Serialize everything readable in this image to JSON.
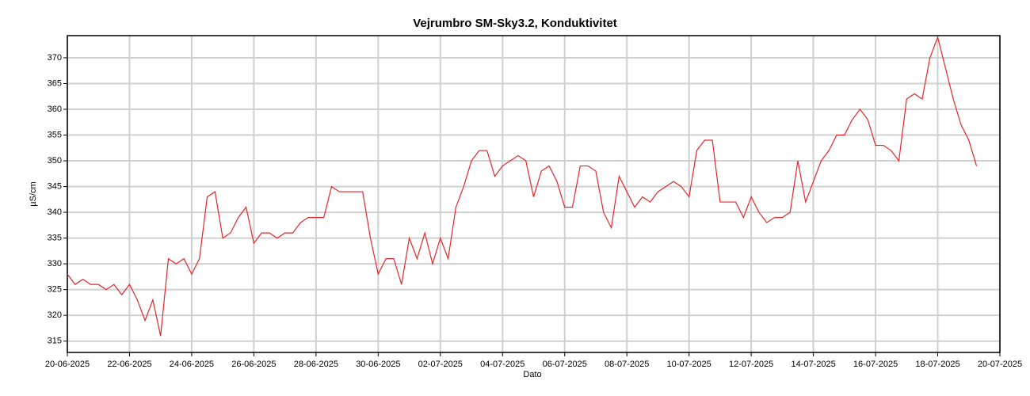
{
  "chart_data": {
    "type": "line",
    "title": "Vejrumbro SM-Sky3.2, Konduktivitet",
    "xlabel": "Dato",
    "ylabel": "µS/cm",
    "x": [
      "2025-06-20T00:00",
      "2025-06-20T06:00",
      "2025-06-20T12:00",
      "2025-06-20T18:00",
      "2025-06-21T00:00",
      "2025-06-21T06:00",
      "2025-06-21T12:00",
      "2025-06-21T18:00",
      "2025-06-22T00:00",
      "2025-06-22T06:00",
      "2025-06-22T12:00",
      "2025-06-22T18:00",
      "2025-06-23T00:00",
      "2025-06-23T06:00",
      "2025-06-23T12:00",
      "2025-06-23T18:00",
      "2025-06-24T00:00",
      "2025-06-24T06:00",
      "2025-06-24T12:00",
      "2025-06-24T18:00",
      "2025-06-25T00:00",
      "2025-06-25T06:00",
      "2025-06-25T12:00",
      "2025-06-25T18:00",
      "2025-06-26T00:00",
      "2025-06-26T06:00",
      "2025-06-26T12:00",
      "2025-06-26T18:00",
      "2025-06-27T00:00",
      "2025-06-27T06:00",
      "2025-06-27T12:00",
      "2025-06-27T18:00",
      "2025-06-28T00:00",
      "2025-06-28T06:00",
      "2025-06-28T12:00",
      "2025-06-28T18:00",
      "2025-06-29T00:00",
      "2025-06-29T06:00",
      "2025-06-29T12:00",
      "2025-06-29T18:00",
      "2025-06-30T00:00",
      "2025-06-30T06:00",
      "2025-06-30T12:00",
      "2025-06-30T18:00",
      "2025-07-01T00:00",
      "2025-07-01T06:00",
      "2025-07-01T12:00",
      "2025-07-01T18:00",
      "2025-07-02T00:00",
      "2025-07-02T06:00",
      "2025-07-02T12:00",
      "2025-07-02T18:00",
      "2025-07-03T00:00",
      "2025-07-03T06:00",
      "2025-07-03T12:00",
      "2025-07-03T18:00",
      "2025-07-04T00:00",
      "2025-07-04T06:00",
      "2025-07-04T12:00",
      "2025-07-04T18:00",
      "2025-07-05T00:00",
      "2025-07-05T06:00",
      "2025-07-05T12:00",
      "2025-07-05T18:00",
      "2025-07-06T00:00",
      "2025-07-06T06:00",
      "2025-07-06T12:00",
      "2025-07-06T18:00",
      "2025-07-07T00:00",
      "2025-07-07T06:00",
      "2025-07-07T12:00",
      "2025-07-07T18:00",
      "2025-07-08T00:00",
      "2025-07-08T06:00",
      "2025-07-08T12:00",
      "2025-07-08T18:00",
      "2025-07-09T00:00",
      "2025-07-09T06:00",
      "2025-07-09T12:00",
      "2025-07-09T18:00",
      "2025-07-10T00:00",
      "2025-07-10T06:00",
      "2025-07-10T12:00",
      "2025-07-10T18:00",
      "2025-07-11T00:00",
      "2025-07-11T06:00",
      "2025-07-11T12:00",
      "2025-07-11T18:00",
      "2025-07-12T00:00",
      "2025-07-12T06:00",
      "2025-07-12T12:00",
      "2025-07-12T18:00",
      "2025-07-13T00:00",
      "2025-07-13T06:00",
      "2025-07-13T12:00",
      "2025-07-13T18:00",
      "2025-07-14T00:00",
      "2025-07-14T06:00",
      "2025-07-14T12:00",
      "2025-07-14T18:00",
      "2025-07-15T00:00",
      "2025-07-15T06:00",
      "2025-07-15T12:00",
      "2025-07-15T18:00",
      "2025-07-16T00:00",
      "2025-07-16T06:00",
      "2025-07-16T12:00",
      "2025-07-16T18:00",
      "2025-07-17T00:00",
      "2025-07-17T06:00",
      "2025-07-17T12:00",
      "2025-07-17T18:00",
      "2025-07-18T00:00",
      "2025-07-18T06:00",
      "2025-07-18T12:00",
      "2025-07-18T18:00",
      "2025-07-19T00:00",
      "2025-07-19T06:00"
    ],
    "values": [
      328,
      326,
      327,
      326,
      326,
      325,
      326,
      324,
      326,
      323,
      319,
      323,
      316,
      331,
      330,
      331,
      328,
      331,
      343,
      344,
      335,
      336,
      339,
      341,
      334,
      336,
      336,
      335,
      336,
      336,
      338,
      339,
      339,
      339,
      345,
      344,
      344,
      344,
      344,
      335,
      328,
      331,
      331,
      326,
      335,
      331,
      336,
      330,
      335,
      331,
      341,
      345,
      350,
      352,
      352,
      347,
      349,
      350,
      351,
      350,
      343,
      348,
      349,
      346,
      341,
      341,
      349,
      349,
      348,
      340,
      337,
      347,
      344,
      341,
      343,
      342,
      344,
      345,
      346,
      345,
      343,
      352,
      354,
      354,
      342,
      342,
      342,
      339,
      343,
      340,
      338,
      339,
      339,
      340,
      350,
      342,
      346,
      350,
      352,
      355,
      355,
      358,
      360,
      358,
      353,
      353,
      352,
      350,
      362,
      363,
      362,
      370,
      374,
      368,
      362,
      357,
      354,
      349
    ],
    "color": "#e3262b",
    "xlim": [
      "2025-06-20",
      "2025-07-20"
    ],
    "xticks": [
      {
        "value": "2025-06-20",
        "label": "20-06-2025"
      },
      {
        "value": "2025-06-22",
        "label": "22-06-2025"
      },
      {
        "value": "2025-06-24",
        "label": "24-06-2025"
      },
      {
        "value": "2025-06-26",
        "label": "26-06-2025"
      },
      {
        "value": "2025-06-28",
        "label": "28-06-2025"
      },
      {
        "value": "2025-06-30",
        "label": "30-06-2025"
      },
      {
        "value": "2025-07-02",
        "label": "02-07-2025"
      },
      {
        "value": "2025-07-04",
        "label": "04-07-2025"
      },
      {
        "value": "2025-07-06",
        "label": "06-07-2025"
      },
      {
        "value": "2025-07-08",
        "label": "08-07-2025"
      },
      {
        "value": "2025-07-10",
        "label": "10-07-2025"
      },
      {
        "value": "2025-07-12",
        "label": "12-07-2025"
      },
      {
        "value": "2025-07-14",
        "label": "14-07-2025"
      },
      {
        "value": "2025-07-16",
        "label": "16-07-2025"
      },
      {
        "value": "2025-07-18",
        "label": "18-07-2025"
      },
      {
        "value": "2025-07-20",
        "label": "20-07-2025"
      }
    ],
    "ylim": [
      312.8,
      374.3
    ],
    "yticks": [
      315,
      320,
      325,
      330,
      335,
      340,
      345,
      350,
      355,
      360,
      365,
      370
    ],
    "grid": true
  }
}
